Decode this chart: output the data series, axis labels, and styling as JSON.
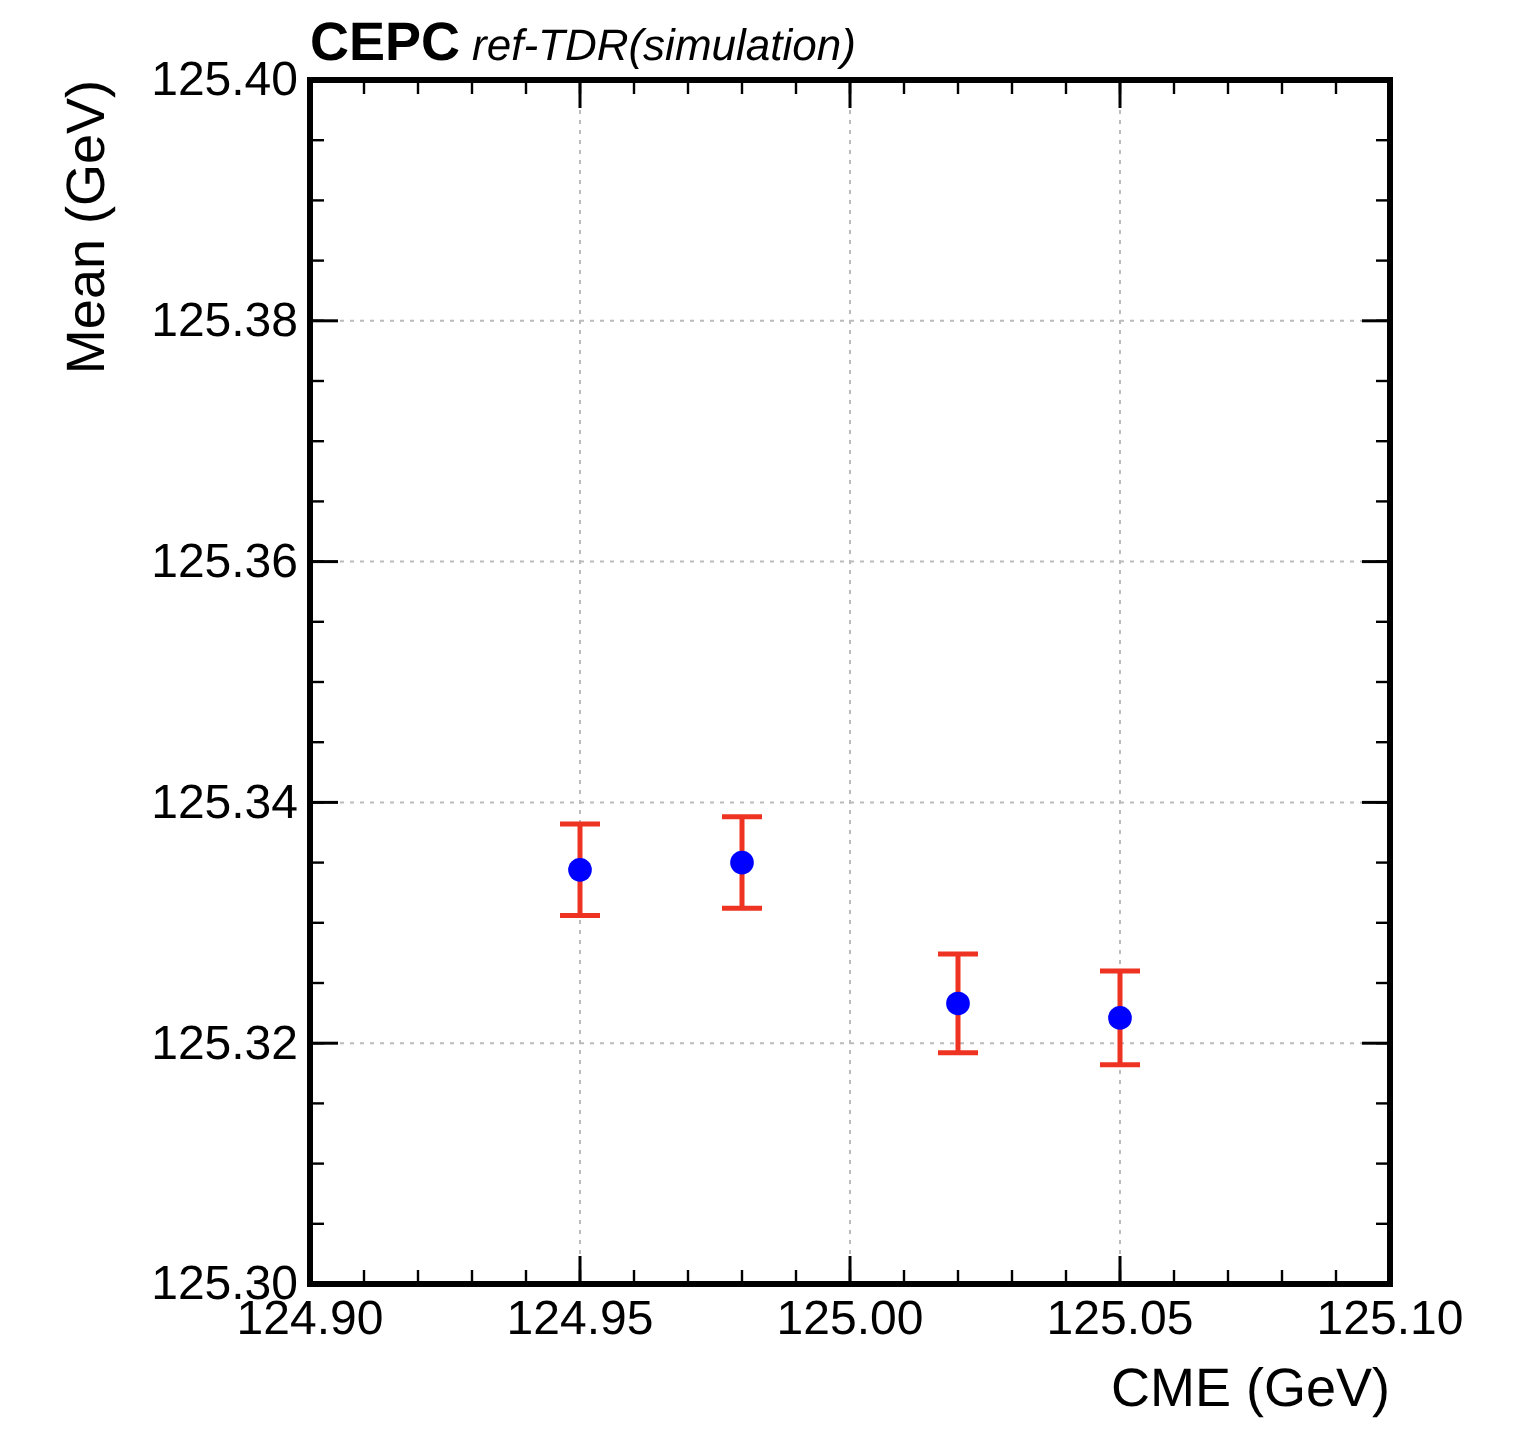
{
  "chart_data": {
    "type": "scatter",
    "title": "CEPC",
    "subtitle": "ref-TDR(simulation)",
    "xlabel": "CME (GeV)",
    "ylabel": "Mean (GeV)",
    "x": [
      124.95,
      124.98,
      125.02,
      125.05
    ],
    "series": [
      {
        "color": "#0000ff",
        "values": [
          125.3344,
          125.335,
          125.3233,
          125.3221
        ],
        "errors": [
          0.0038,
          0.0038,
          0.0041,
          0.0039
        ]
      }
    ],
    "xlim": [
      124.9,
      125.1
    ],
    "xticks": [
      {
        "value": 124.9,
        "label": "124.90"
      },
      124.95,
      {
        "value": 125,
        "label": "125.00"
      },
      125.05,
      {
        "value": 125.1,
        "label": "125.10"
      }
    ],
    "ylim": [
      125.3,
      125.4
    ],
    "yticks": [
      {
        "value": 125.3,
        "label": "125.30"
      },
      125.32,
      125.34,
      125.36,
      125.38,
      {
        "value": 125.4,
        "label": "125.40"
      }
    ],
    "grid": true,
    "marker": "circle"
  }
}
